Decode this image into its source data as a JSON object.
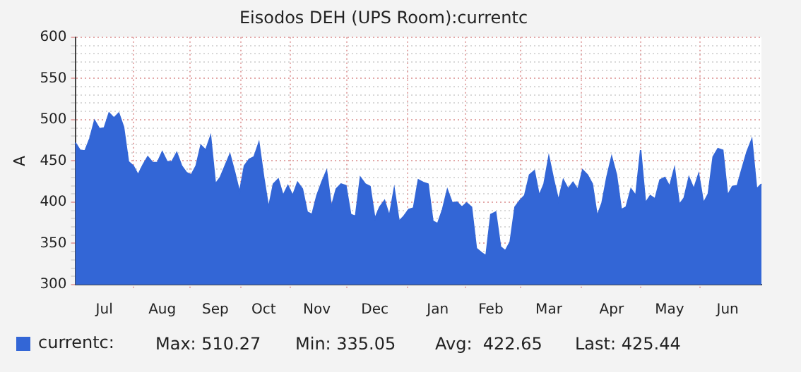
{
  "chart_data": {
    "type": "area",
    "title": "Eisodos DEH (UPS Room):currentc",
    "ylabel": "A",
    "categories": [
      null,
      null,
      null,
      null,
      null,
      null,
      "Jul",
      null,
      null,
      null,
      null,
      null,
      null,
      null,
      null,
      null,
      null,
      null,
      "Aug",
      null,
      null,
      null,
      null,
      null,
      null,
      null,
      null,
      null,
      null,
      "Sep",
      null,
      null,
      null,
      null,
      null,
      null,
      null,
      null,
      null,
      "Oct",
      null,
      null,
      null,
      null,
      null,
      null,
      null,
      null,
      null,
      null,
      "Nov",
      null,
      null,
      null,
      null,
      null,
      null,
      null,
      null,
      null,
      null,
      null,
      "Dec",
      null,
      null,
      null,
      null,
      null,
      null,
      null,
      null,
      null,
      null,
      null,
      null,
      "Jan",
      null,
      null,
      null,
      null,
      null,
      null,
      null,
      null,
      null,
      null,
      "Feb",
      null,
      null,
      null,
      null,
      null,
      null,
      null,
      null,
      null,
      null,
      null,
      "Mar",
      null,
      null,
      null,
      null,
      null,
      null,
      null,
      null,
      null,
      null,
      null,
      null,
      "Apr",
      null,
      null,
      null,
      null,
      null,
      null,
      null,
      null,
      null,
      null,
      null,
      "May",
      null,
      null,
      null,
      null,
      null,
      null,
      null,
      null,
      null,
      null,
      null,
      "Jun",
      null,
      null,
      null,
      null,
      null,
      null,
      null
    ],
    "series": [
      {
        "name": "currentc:",
        "color": "#3366d6",
        "values": [
          472,
          463,
          462,
          477,
          499,
          489,
          490,
          508,
          502,
          508,
          491,
          449,
          444,
          433,
          445,
          455,
          448,
          448,
          461,
          449,
          449,
          460,
          444,
          436,
          433,
          444,
          469,
          463,
          480,
          422,
          430,
          444,
          458,
          436,
          412,
          444,
          452,
          455,
          472,
          430,
          393,
          422,
          428,
          408,
          420,
          408,
          424,
          416,
          388,
          385,
          408,
          424,
          438,
          394,
          416,
          422,
          420,
          385,
          383,
          430,
          422,
          419,
          380,
          394,
          402,
          383,
          416,
          377,
          383,
          391,
          393,
          427,
          424,
          422,
          377,
          374,
          391,
          415,
          399,
          400,
          394,
          399,
          394,
          344,
          339,
          335,
          385,
          388,
          346,
          341,
          352,
          394,
          402,
          408,
          433,
          438,
          408,
          422,
          455,
          427,
          402,
          427,
          416,
          424,
          415,
          439,
          433,
          422,
          383,
          399,
          430,
          455,
          433,
          391,
          394,
          416,
          408,
          463,
          399,
          408,
          404,
          427,
          430,
          419,
          441,
          397,
          405,
          430,
          416,
          434,
          399,
          410,
          455,
          465,
          463,
          408,
          419,
          420,
          441,
          461,
          476,
          416,
          422
        ]
      }
    ],
    "ylim": [
      300,
      600
    ],
    "yticks": [
      300,
      {
        "value": 310,
        "label": null
      },
      {
        "value": 320,
        "label": null
      },
      {
        "value": 330,
        "label": null
      },
      {
        "value": 340,
        "label": null
      },
      350,
      {
        "value": 360,
        "label": null
      },
      {
        "value": 370,
        "label": null
      },
      {
        "value": 380,
        "label": null
      },
      {
        "value": 390,
        "label": null
      },
      400,
      {
        "value": 410,
        "label": null
      },
      {
        "value": 420,
        "label": null
      },
      {
        "value": 430,
        "label": null
      },
      {
        "value": 440,
        "label": null
      },
      450,
      {
        "value": 460,
        "label": null
      },
      {
        "value": 470,
        "label": null
      },
      {
        "value": 480,
        "label": null
      },
      {
        "value": 490,
        "label": null
      },
      500,
      {
        "value": 510,
        "label": null
      },
      {
        "value": 520,
        "label": null
      },
      {
        "value": 530,
        "label": null
      },
      {
        "value": 540,
        "label": null
      },
      550,
      {
        "value": 560,
        "label": null
      },
      {
        "value": 570,
        "label": null
      },
      {
        "value": 580,
        "label": null
      },
      {
        "value": 590,
        "label": null
      },
      600
    ],
    "grid": true,
    "legend": "bottom",
    "annotations": [
      "Max: 510.27",
      "Min: 335.05",
      "Avg:  422.65",
      "Last: 425.44"
    ]
  }
}
